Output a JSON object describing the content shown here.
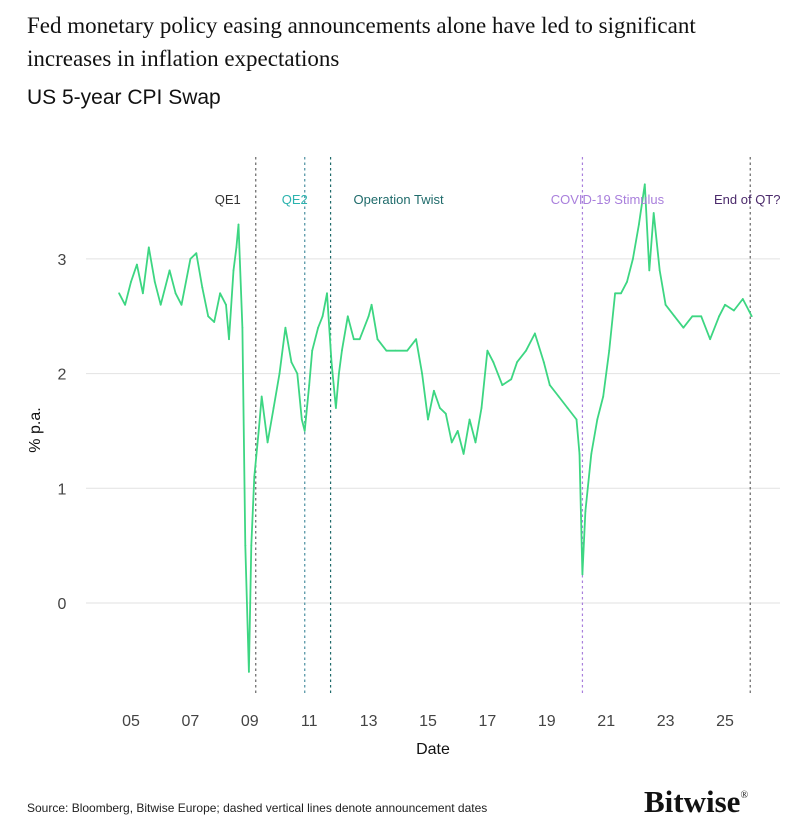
{
  "title": "Fed monetary policy easing announcements alone have led to significant increases in inflation expectations",
  "subtitle": "US 5-year CPI Swap",
  "source": "Source: Bloomberg, Bitwise Europe; dashed vertical lines denote announcement dates",
  "logo": "Bitwise",
  "chart_data": {
    "type": "line",
    "xlabel": "Date",
    "ylabel": "% p.a.",
    "xlim": [
      2004.4,
      2026.3
    ],
    "ylim": [
      -0.85,
      3.85
    ],
    "x_ticks": [
      2005,
      2007,
      2009,
      2011,
      2013,
      2015,
      2017,
      2019,
      2021,
      2023,
      2025
    ],
    "x_tick_labels": [
      "05",
      "07",
      "09",
      "11",
      "13",
      "15",
      "17",
      "19",
      "21",
      "23",
      "25"
    ],
    "y_ticks": [
      0,
      1,
      2,
      3
    ],
    "y_tick_labels": [
      "0",
      "1",
      "2",
      "3"
    ],
    "grid": "horizontal",
    "line_color": "#3dd682",
    "annotations": [
      {
        "label": "QE1",
        "x": 2009.2,
        "color": "#333333",
        "line_color": "#666666"
      },
      {
        "label": "QE2",
        "x": 2010.85,
        "color": "#2bb3ae",
        "line_color": "#4a8fa0"
      },
      {
        "label": "Operation Twist",
        "x": 2011.72,
        "color": "#1f6b6b",
        "line_color": "#1f6b6b"
      },
      {
        "label": "COVID-19 Stimulus",
        "x": 2020.2,
        "color": "#a97fdc",
        "line_color": "#a97fdc"
      },
      {
        "label": "End of QT?",
        "x": 2025.85,
        "color": "#4b2a6b",
        "line_color": "#666666"
      }
    ],
    "series": [
      {
        "x": [
          2004.6,
          2004.8,
          2005.0,
          2005.2,
          2005.4,
          2005.6,
          2005.8,
          2006.0,
          2006.3,
          2006.5,
          2006.7,
          2007.0,
          2007.2,
          2007.4,
          2007.6,
          2007.8,
          2008.0,
          2008.2,
          2008.3,
          2008.45,
          2008.55,
          2008.62,
          2008.75,
          2008.85,
          2008.97,
          2009.05,
          2009.15,
          2009.3,
          2009.4,
          2009.6,
          2009.8,
          2010.0,
          2010.2,
          2010.4,
          2010.6,
          2010.75,
          2010.85,
          2011.0,
          2011.1,
          2011.3,
          2011.45,
          2011.6,
          2011.75,
          2011.9,
          2012.0,
          2012.1,
          2012.3,
          2012.5,
          2012.7,
          2013.0,
          2013.1,
          2013.3,
          2013.6,
          2013.9,
          2014.3,
          2014.6,
          2014.8,
          2015.0,
          2015.2,
          2015.4,
          2015.6,
          2015.8,
          2016.0,
          2016.2,
          2016.4,
          2016.6,
          2016.8,
          2017.0,
          2017.2,
          2017.5,
          2017.8,
          2018.0,
          2018.3,
          2018.6,
          2018.9,
          2019.1,
          2019.4,
          2019.7,
          2020.0,
          2020.1,
          2020.2,
          2020.3,
          2020.5,
          2020.7,
          2020.9,
          2021.1,
          2021.3,
          2021.5,
          2021.7,
          2021.9,
          2022.1,
          2022.3,
          2022.45,
          2022.6,
          2022.8,
          2023.0,
          2023.3,
          2023.6,
          2023.9,
          2024.2,
          2024.5,
          2024.8,
          2025.0,
          2025.3,
          2025.6,
          2025.8,
          2025.9
        ],
        "y": [
          2.7,
          2.6,
          2.8,
          2.95,
          2.7,
          3.1,
          2.8,
          2.6,
          2.9,
          2.7,
          2.6,
          3.0,
          3.05,
          2.75,
          2.5,
          2.45,
          2.7,
          2.6,
          2.3,
          2.9,
          3.1,
          3.3,
          2.4,
          0.5,
          -0.6,
          0.5,
          1.1,
          1.5,
          1.8,
          1.4,
          1.7,
          2.0,
          2.4,
          2.1,
          2.0,
          1.6,
          1.5,
          1.9,
          2.2,
          2.4,
          2.5,
          2.7,
          2.1,
          1.7,
          2.0,
          2.2,
          2.5,
          2.3,
          2.3,
          2.5,
          2.6,
          2.3,
          2.2,
          2.2,
          2.2,
          2.3,
          2.0,
          1.6,
          1.85,
          1.7,
          1.65,
          1.4,
          1.5,
          1.3,
          1.6,
          1.4,
          1.7,
          2.2,
          2.1,
          1.9,
          1.95,
          2.1,
          2.2,
          2.35,
          2.1,
          1.9,
          1.8,
          1.7,
          1.6,
          1.3,
          0.25,
          0.8,
          1.3,
          1.6,
          1.8,
          2.2,
          2.7,
          2.7,
          2.8,
          3.0,
          3.3,
          3.65,
          2.9,
          3.4,
          2.9,
          2.6,
          2.5,
          2.4,
          2.5,
          2.5,
          2.3,
          2.5,
          2.6,
          2.55,
          2.65,
          2.55,
          2.5
        ]
      }
    ]
  }
}
